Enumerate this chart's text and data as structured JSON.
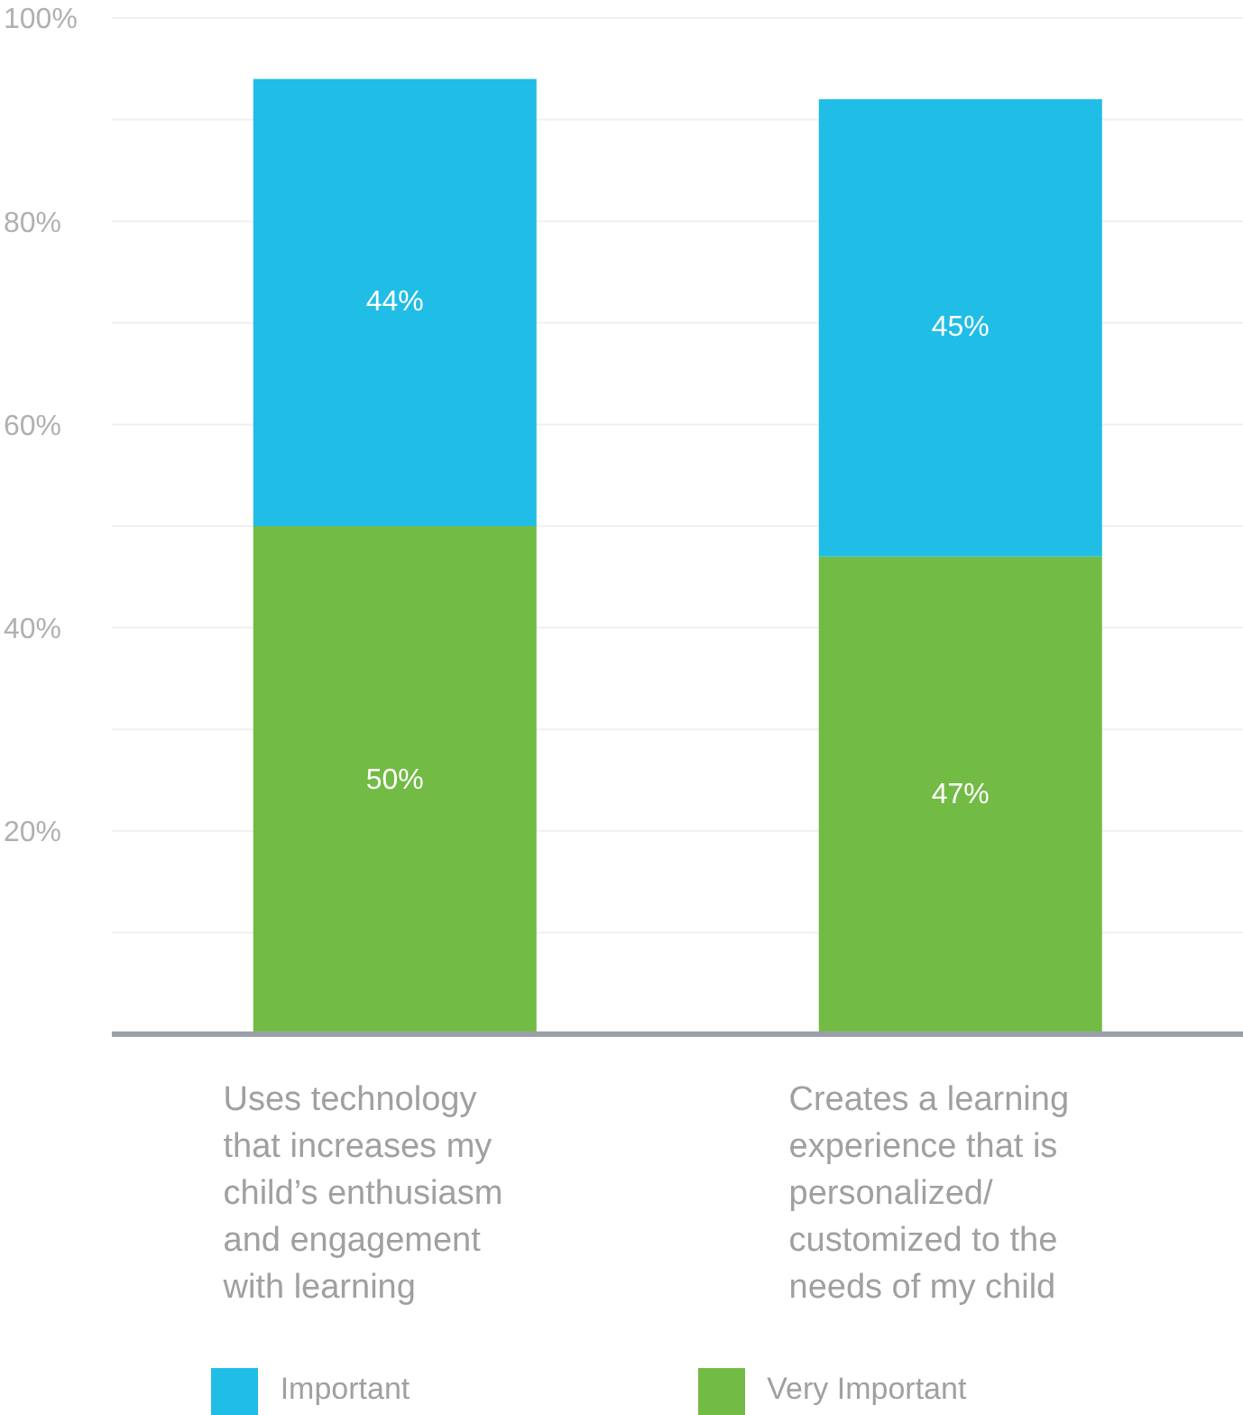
{
  "chart_data": {
    "type": "bar",
    "stacked": true,
    "categories": [
      "Uses technology that increases my child’s enthusiasm and engagement with learning",
      "Creates a learning experience that is personalized/ customized to the needs of my child"
    ],
    "series": [
      {
        "name": "Very Important",
        "color": "#72bb45",
        "values": [
          50,
          47
        ],
        "value_labels": [
          "50%",
          "47%"
        ]
      },
      {
        "name": "Important",
        "color": "#20bde6",
        "values": [
          44,
          45
        ],
        "value_labels": [
          "44%",
          "45%"
        ]
      }
    ],
    "ylim": [
      0,
      100
    ],
    "yticks": [
      {
        "value": 0,
        "label": null
      },
      {
        "value": 10,
        "label": null
      },
      {
        "value": 20,
        "label": "20%"
      },
      {
        "value": 30,
        "label": null
      },
      {
        "value": 40,
        "label": "40%"
      },
      {
        "value": 50,
        "label": null
      },
      {
        "value": 60,
        "label": "60%"
      },
      {
        "value": 70,
        "label": null
      },
      {
        "value": 80,
        "label": "80%"
      },
      {
        "value": 90,
        "label": null
      },
      {
        "value": 100,
        "label": "100%"
      }
    ],
    "grid": "y",
    "legend": "bottom"
  }
}
